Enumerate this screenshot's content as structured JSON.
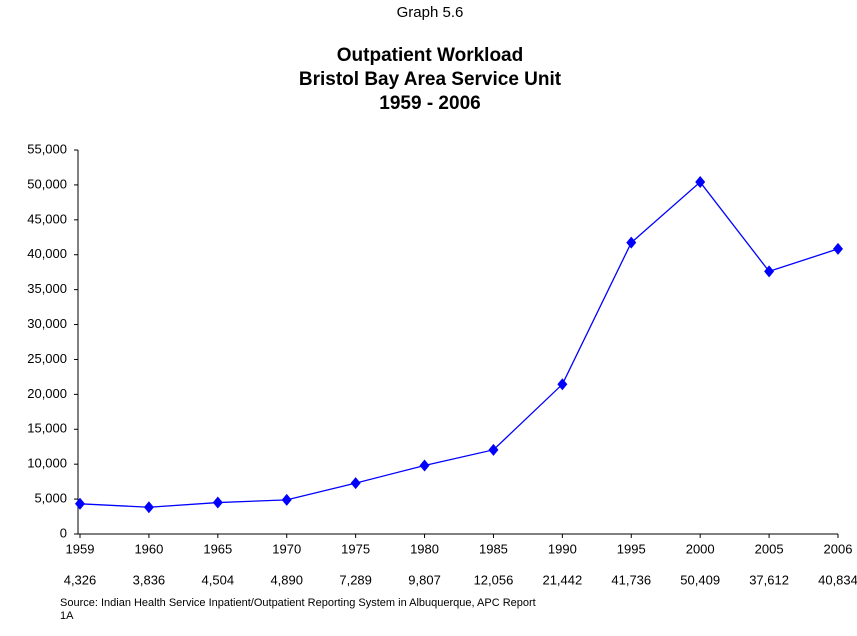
{
  "chart_data": {
    "type": "line",
    "caption": "Graph 5.6",
    "title": [
      "Outpatient Workload",
      "Bristol Bay Area Service Unit",
      "1959 - 2006"
    ],
    "categories": [
      "1959",
      "1960",
      "1965",
      "1970",
      "1975",
      "1980",
      "1985",
      "1990",
      "1995",
      "2000",
      "2005",
      "2006"
    ],
    "values": [
      4326,
      3836,
      4504,
      4890,
      7289,
      9807,
      12056,
      21442,
      41736,
      50409,
      37612,
      40834
    ],
    "value_labels": [
      "4,326",
      "3,836",
      "4,504",
      "4,890",
      "7,289",
      "9,807",
      "12,056",
      "21,442",
      "41,736",
      "50,409",
      "37,612",
      "40,834"
    ],
    "color": "#0000ff",
    "ylim": [
      0,
      55000
    ],
    "yticks": [
      0,
      {
        "value": 5000,
        "label": "5,000"
      },
      {
        "value": 10000,
        "label": "10,000"
      },
      {
        "value": 15000,
        "label": "15,000"
      },
      {
        "value": 20000,
        "label": "20,000"
      },
      {
        "value": 25000,
        "label": "25,000"
      },
      {
        "value": 30000,
        "label": "30,000"
      },
      {
        "value": 35000,
        "label": "35,000"
      },
      {
        "value": 40000,
        "label": "40,000"
      },
      {
        "value": 45000,
        "label": "45,000"
      },
      {
        "value": 50000,
        "label": "50,000"
      },
      {
        "value": 55000,
        "label": "55,000"
      }
    ],
    "grid": false,
    "source": [
      "Source:  Indian Health Service Inpatient/Outpatient Reporting System in Albuquerque, APC Report",
      "1A"
    ]
  }
}
